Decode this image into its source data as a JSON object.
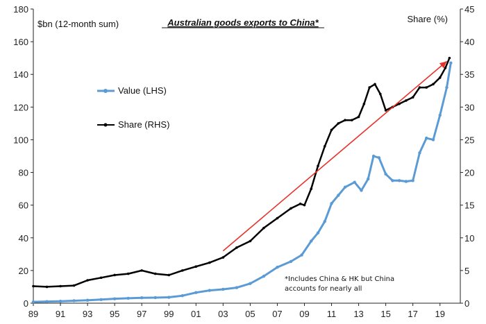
{
  "chart_data": {
    "type": "line",
    "title": "Australian goods exports to China*",
    "ylabel_left": "$bn (12-month sum)",
    "ylabel_right": "Share (%)",
    "ylim_left": [
      0,
      180
    ],
    "ylim_right": [
      0,
      45
    ],
    "yticks_left": [
      0,
      20,
      40,
      60,
      80,
      100,
      120,
      140,
      160,
      180
    ],
    "yticks_right": [
      0,
      5,
      10,
      15,
      20,
      25,
      30,
      35,
      40,
      45
    ],
    "xlim": [
      1989,
      2020.5
    ],
    "xticks": [
      1989,
      1991,
      1993,
      1995,
      1997,
      1999,
      2001,
      2003,
      2005,
      2007,
      2009,
      2011,
      2013,
      2015,
      2017,
      2019
    ],
    "xtick_labels": [
      "89",
      "91",
      "93",
      "95",
      "97",
      "99",
      "01",
      "03",
      "05",
      "07",
      "09",
      "11",
      "13",
      "15",
      "17",
      "19"
    ],
    "legend_position": "left",
    "grid": false,
    "series": [
      {
        "name": "Value (LHS)",
        "axis": "left",
        "color": "#5b9bd5",
        "x": [
          1989,
          1990,
          1991,
          1992,
          1993,
          1994,
          1995,
          1996,
          1997,
          1998,
          1999,
          2000,
          2001,
          2002,
          2003,
          2004,
          2005,
          2006,
          2007,
          2008,
          2008.8,
          2009.5,
          2010,
          2010.5,
          2011,
          2011.5,
          2012,
          2012.7,
          2013.2,
          2013.7,
          2014.1,
          2014.5,
          2015,
          2015.5,
          2016,
          2016.5,
          2017,
          2017.5,
          2018,
          2018.5,
          2019,
          2019.5,
          2019.8
        ],
        "y": [
          0.8,
          1.0,
          1.2,
          1.5,
          1.8,
          2.2,
          2.7,
          3.0,
          3.3,
          3.4,
          3.6,
          4.6,
          6.5,
          7.8,
          8.5,
          9.5,
          12,
          16.5,
          22,
          25.5,
          29.5,
          38,
          43,
          50,
          61,
          66,
          71,
          74,
          69,
          76,
          90,
          89,
          79,
          75,
          75,
          74.5,
          75,
          92,
          101,
          100,
          115,
          132,
          147
        ]
      },
      {
        "name": "Share (RHS)",
        "axis": "right",
        "color": "#000000",
        "x": [
          1989,
          1990,
          1991,
          1992,
          1993,
          1994,
          1995,
          1996,
          1997,
          1998,
          1999,
          2000,
          2001,
          2002,
          2003,
          2004,
          2005,
          2006,
          2007,
          2008,
          2008.7,
          2009,
          2009.5,
          2010,
          2010.5,
          2011,
          2011.5,
          2012,
          2012.5,
          2013,
          2013.4,
          2013.8,
          2014.2,
          2014.6,
          2015,
          2015.5,
          2016,
          2016.5,
          2017,
          2017.5,
          2018,
          2018.5,
          2019,
          2019.4,
          2019.7
        ],
        "y": [
          2.6,
          2.5,
          2.6,
          2.7,
          3.5,
          3.9,
          4.3,
          4.5,
          5.0,
          4.5,
          4.3,
          5.0,
          5.6,
          6.2,
          7.0,
          8.5,
          9.5,
          11.5,
          13.0,
          14.5,
          15.2,
          15.0,
          17.5,
          21.0,
          24.0,
          26.5,
          27.5,
          28.0,
          28.0,
          28.5,
          30.5,
          33.0,
          33.5,
          32.0,
          29.5,
          30.0,
          30.5,
          31.0,
          31.5,
          33.0,
          33.0,
          33.5,
          34.5,
          36.0,
          37.5
        ]
      }
    ],
    "trend_arrow": {
      "color": "#e8322b",
      "x": [
        2003,
        2019.5
      ],
      "y_right": [
        8,
        37
      ]
    },
    "annotation": {
      "lines": [
        "*Includes China & HK but China",
        "accounts for nearly all"
      ]
    }
  }
}
